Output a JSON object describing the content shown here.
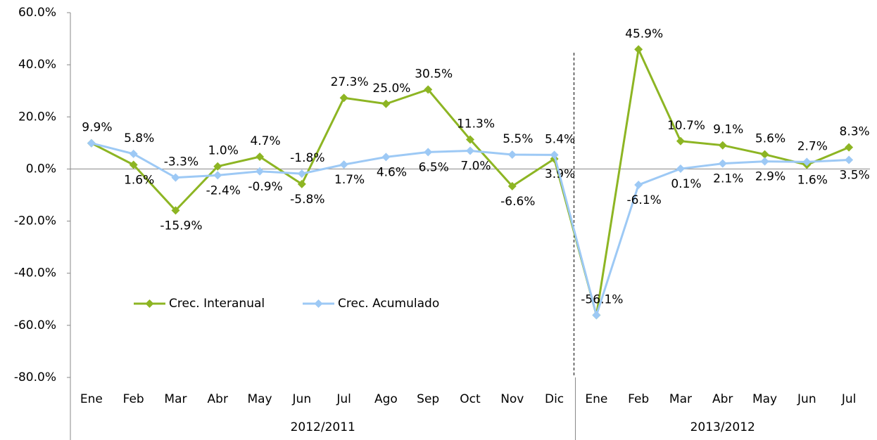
{
  "chart_data": {
    "type": "line",
    "category_groups": [
      {
        "label": "2012/2011",
        "categories": [
          "Ene",
          "Feb",
          "Mar",
          "Abr",
          "May",
          "Jun",
          "Jul",
          "Ago",
          "Sep",
          "Oct",
          "Nov",
          "Dic"
        ]
      },
      {
        "label": "2013/2012",
        "categories": [
          "Ene",
          "Feb",
          "Mar",
          "Abr",
          "May",
          "Jun",
          "Jul"
        ]
      }
    ],
    "series": [
      {
        "name": "Crec. Interanual",
        "color": "#8db523",
        "values": [
          9.9,
          1.6,
          -15.9,
          1.0,
          4.7,
          -5.8,
          27.3,
          25.0,
          30.5,
          11.3,
          -6.6,
          3.9,
          -56.1,
          45.9,
          10.7,
          9.1,
          5.6,
          1.6,
          8.3
        ],
        "value_labels": [
          "9.9%",
          "1.6%",
          "-15.9%",
          "1.0%",
          "4.7%",
          "-5.8%",
          "27.3%",
          "25.0%",
          "30.5%",
          "11.3%",
          "-6.6%",
          "3.9%",
          "-56.1%",
          "45.9%",
          "10.7%",
          "9.1%",
          "5.6%",
          "1.6%",
          "8.3%"
        ]
      },
      {
        "name": "Crec. Acumulado",
        "color": "#9dc9f5",
        "values": [
          9.9,
          5.8,
          -3.3,
          -2.4,
          -0.9,
          -1.8,
          1.7,
          4.6,
          6.5,
          7.0,
          5.5,
          5.4,
          -56.1,
          -6.1,
          0.1,
          2.1,
          2.9,
          2.7,
          3.5
        ],
        "value_labels": [
          null,
          "5.8%",
          "-3.3%",
          "-2.4%",
          "-0.9%",
          "-1.8%",
          "1.7%",
          "4.6%",
          "6.5%",
          "7.0%",
          "5.5%",
          "5.4%",
          null,
          "-6.1%",
          "0.1%",
          "2.1%",
          "2.9%",
          "2.7%",
          "3.5%"
        ]
      }
    ],
    "ylim": [
      -80,
      60
    ],
    "yticks": [
      {
        "value": -80,
        "label": "-80.0%"
      },
      {
        "value": -60,
        "label": "-60.0%"
      },
      {
        "value": -40,
        "label": "-40.0%"
      },
      {
        "value": -20,
        "label": "-20.0%"
      },
      {
        "value": 0,
        "label": "0.0%"
      },
      {
        "value": 20,
        "label": "20.0%"
      },
      {
        "value": 40,
        "label": "40.0%"
      },
      {
        "value": 60,
        "label": "60.0%"
      }
    ]
  }
}
